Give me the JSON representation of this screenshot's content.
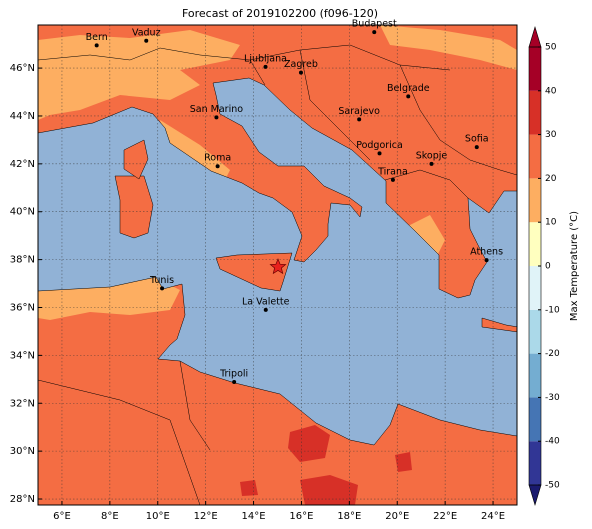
{
  "title": "Forecast of 2019102200 (f096-120)",
  "map": {
    "xlim": [
      5,
      25
    ],
    "ylim": [
      27.75,
      47.8
    ],
    "xticks": [
      {
        "value": 6,
        "label": "6°E"
      },
      {
        "value": 8,
        "label": "8°E"
      },
      {
        "value": 10,
        "label": "10°E"
      },
      {
        "value": 12,
        "label": "12°E"
      },
      {
        "value": 14,
        "label": "14°E"
      },
      {
        "value": 16,
        "label": "16°E"
      },
      {
        "value": 18,
        "label": "18°E"
      },
      {
        "value": 20,
        "label": "20°E"
      },
      {
        "value": 22,
        "label": "22°E"
      },
      {
        "value": 24,
        "label": "24°E"
      }
    ],
    "yticks": [
      {
        "value": 28,
        "label": "28°N"
      },
      {
        "value": 30,
        "label": "30°N"
      },
      {
        "value": 32,
        "label": "32°N"
      },
      {
        "value": 34,
        "label": "34°N"
      },
      {
        "value": 36,
        "label": "36°N"
      },
      {
        "value": 38,
        "label": "38°N"
      },
      {
        "value": 40,
        "label": "40°N"
      },
      {
        "value": 42,
        "label": "42°N"
      },
      {
        "value": 44,
        "label": "44°N"
      },
      {
        "value": 46,
        "label": "46°N"
      }
    ],
    "grid": true,
    "cities": [
      "Bern",
      "Vaduz",
      "Budapest",
      "Ljubljana",
      "Zagreb",
      "Belgrade",
      "San Marino",
      "Sarajevo",
      "Sofia",
      "Roma",
      "Podgorica",
      "Skopje",
      "Tirana",
      "Athens",
      "Tunis",
      "La Valette",
      "Tripoli"
    ]
  },
  "colorbar": {
    "label": "Max Temperature (°C)",
    "lim": [
      -50,
      50
    ],
    "ticks": [
      -50,
      -40,
      -30,
      -20,
      -10,
      0,
      10,
      20,
      30,
      40,
      50
    ],
    "colors": [
      "#313695",
      "#4575b4",
      "#74add1",
      "#abd9e9",
      "#e0f3f8",
      "#ffffbf",
      "#fdae61",
      "#f46d43",
      "#d73027",
      "#a50026"
    ],
    "under": "#1a1a6e",
    "over": "#a50026"
  }
}
